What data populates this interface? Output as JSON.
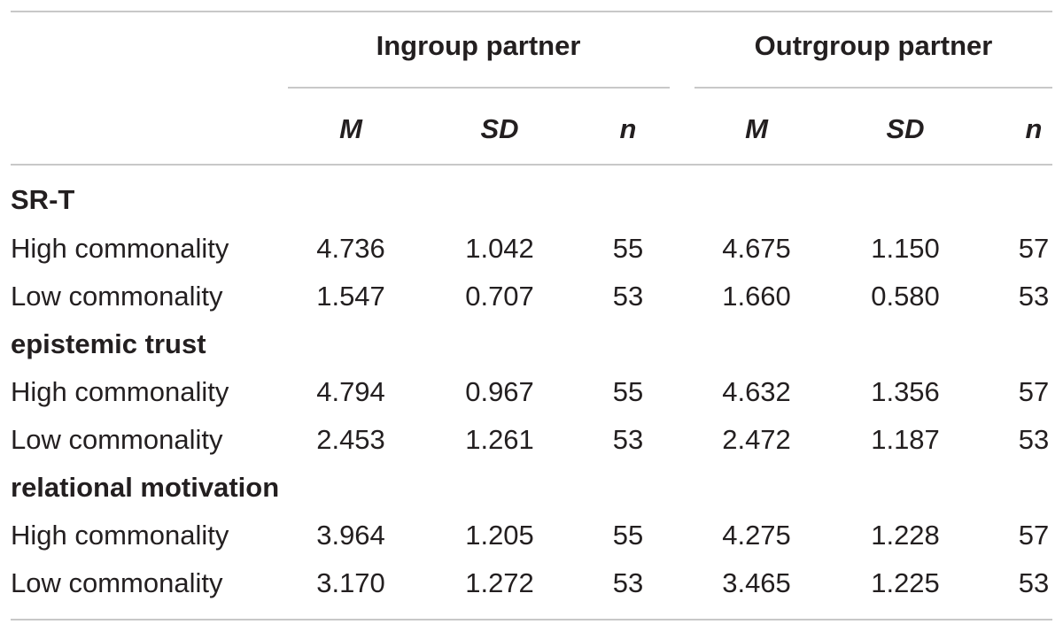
{
  "table": {
    "group_headers": [
      "Ingroup partner",
      "Outrgroup partner"
    ],
    "stat_headers": [
      "M",
      "SD",
      "n",
      "M",
      "SD",
      "n"
    ],
    "sections": [
      {
        "title": "SR-T",
        "rows": [
          {
            "label": "High commonality",
            "values": [
              "4.736",
              "1.042",
              "55",
              "4.675",
              "1.150",
              "57"
            ]
          },
          {
            "label": "Low commonality",
            "values": [
              "1.547",
              "0.707",
              "53",
              "1.660",
              "0.580",
              "53"
            ]
          }
        ]
      },
      {
        "title": "epistemic trust",
        "rows": [
          {
            "label": "High commonality",
            "values": [
              "4.794",
              "0.967",
              "55",
              "4.632",
              "1.356",
              "57"
            ]
          },
          {
            "label": "Low commonality",
            "values": [
              "2.453",
              "1.261",
              "53",
              "2.472",
              "1.187",
              "53"
            ]
          }
        ]
      },
      {
        "title": "relational motivation",
        "rows": [
          {
            "label": "High commonality",
            "values": [
              "3.964",
              "1.205",
              "55",
              "4.275",
              "1.228",
              "57"
            ]
          },
          {
            "label": "Low commonality",
            "values": [
              "3.170",
              "1.272",
              "53",
              "3.465",
              "1.225",
              "53"
            ]
          }
        ]
      }
    ]
  }
}
